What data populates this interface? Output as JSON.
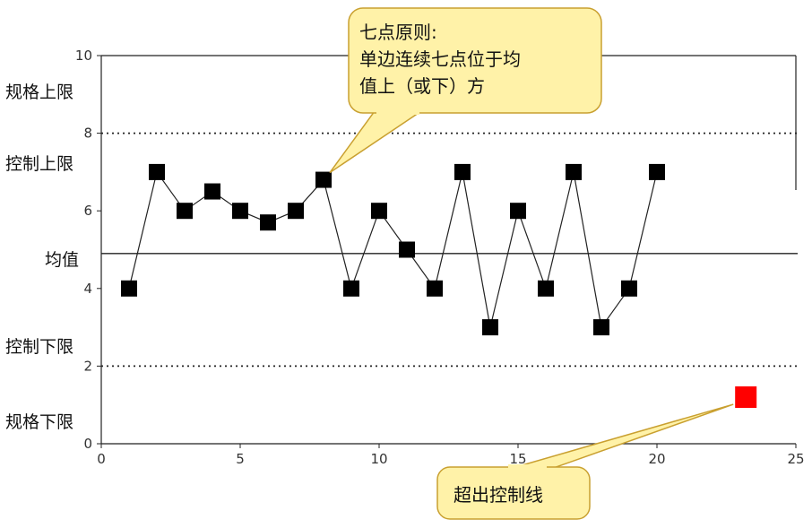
{
  "chart_data": {
    "type": "line",
    "x": [
      1,
      2,
      3,
      4,
      5,
      6,
      7,
      8,
      9,
      10,
      11,
      12,
      13,
      14,
      15,
      16,
      17,
      18,
      19,
      20
    ],
    "series": [
      {
        "values": [
          4,
          7,
          6,
          6.5,
          6,
          5.7,
          6,
          6.8,
          4,
          6,
          5,
          4,
          7,
          3,
          6,
          4,
          7,
          3,
          4,
          7
        ]
      }
    ],
    "outlier": {
      "x": 23.2,
      "y": 1.2,
      "color": "#ff0000"
    },
    "xlim": [
      0,
      25
    ],
    "ylim": [
      0,
      10
    ],
    "x_ticks": [
      0,
      5,
      10,
      15,
      20,
      25
    ],
    "y_ticks": [
      0,
      2,
      4,
      6,
      8,
      10
    ],
    "reference_lines": [
      {
        "y": 8,
        "style": "dotted"
      },
      {
        "y": 4.9,
        "style": "solid"
      },
      {
        "y": 2,
        "style": "dotted"
      }
    ],
    "row_labels": [
      "规格上限",
      "控制上限",
      "均值",
      "控制下限",
      "规格下限"
    ],
    "annotations": [
      {
        "lines": [
          "七点原则:",
          "单边连续七点位于均",
          "值上（或下）方"
        ],
        "points_to": {
          "x": 8,
          "y": 6.8
        }
      },
      {
        "lines": [
          "超出控制线"
        ],
        "points_to": {
          "x": 23.2,
          "y": 1.2
        }
      }
    ],
    "colors": {
      "marker": "#000000",
      "callout_fill": "#fff2a8",
      "callout_stroke": "#c9a030"
    }
  }
}
